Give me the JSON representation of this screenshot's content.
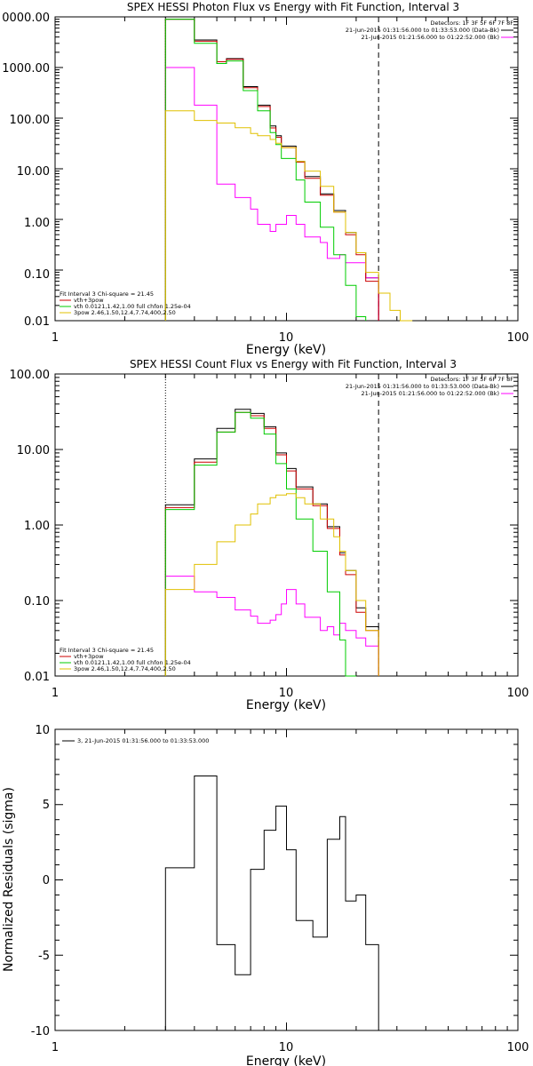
{
  "chart_data": [
    {
      "type": "line",
      "title": "SPEX HESSI Photon Flux vs Energy with Fit Function, Interval 3",
      "xlabel": "Energy (keV)",
      "ylabel": "",
      "xscale": "log",
      "yscale": "log",
      "xlim": [
        1,
        100
      ],
      "ylim": [
        0.01,
        10000
      ],
      "x_ticks": [
        "1",
        "10",
        "100"
      ],
      "y_ticks": [
        "0.01",
        "0.10",
        "1.00",
        "10.00",
        "100.00",
        "1000.00",
        "0000.00"
      ],
      "legend_top": {
        "detectors": "Detectors: 1F 3F 5F 6F 7F 8F",
        "line1": "21-Jun-2015 01:31:56.000 to 01:33:53.000 (Data-Bk)",
        "line2": "21-Jun-2015 01:21:56.000 to 01:22:52.000 (Bk)"
      },
      "legend_bottom": {
        "header": "Fit Interval 3   Chi-square = 21.45",
        "items": [
          "vth+3pow",
          "vth 0.0121,1.42,1.00  full chfon 1.25e-04",
          "3pow 2.46,1.50,12.4,7.74,400,2.50"
        ]
      },
      "vlines": [
        {
          "x": 3.0,
          "style": "dotted"
        },
        {
          "x": 25.0,
          "style": "dashed"
        }
      ],
      "edges": [
        3.0,
        3.5,
        4.0,
        4.5,
        5.0,
        5.5,
        6.0,
        6.5,
        7.0,
        7.5,
        8.0,
        8.5,
        9.0,
        9.5,
        10.0,
        11.0,
        12.0,
        13.0,
        14.0,
        15.0,
        16.0,
        17.0,
        18.0,
        20.0,
        22.0,
        25.0,
        28.0,
        31.0,
        35.0
      ],
      "series": [
        {
          "name": "Data-Bk",
          "color": "#000000",
          "values": [
            9000,
            9000,
            3500,
            3500,
            1200,
            1500,
            1500,
            420,
            420,
            180,
            180,
            70,
            45,
            28,
            28,
            14,
            7,
            7,
            3.2,
            3.2,
            1.5,
            1.5,
            0.55,
            0.22,
            0.07,
            null,
            null,
            null
          ]
        },
        {
          "name": "Bk",
          "color": "#ff00ff",
          "values": [
            1000,
            1000,
            180,
            180,
            5.0,
            5.0,
            2.7,
            2.7,
            1.6,
            0.8,
            0.8,
            0.58,
            0.8,
            0.8,
            1.2,
            0.8,
            0.45,
            0.45,
            0.35,
            0.17,
            0.17,
            0.2,
            0.14,
            0.14,
            0.07,
            null,
            null,
            null
          ]
        },
        {
          "name": "vth+3pow",
          "color": "#cc0000",
          "values": [
            9000,
            9000,
            3300,
            3300,
            1300,
            1450,
            1450,
            400,
            400,
            170,
            170,
            64,
            42,
            26,
            26,
            13.5,
            6.5,
            6.5,
            3.0,
            3.0,
            1.4,
            1.4,
            0.5,
            0.2,
            0.06,
            null,
            null,
            null
          ]
        },
        {
          "name": "vth",
          "color": "#00cc00",
          "values": [
            9000,
            9000,
            3000,
            3000,
            1200,
            1350,
            1350,
            350,
            350,
            140,
            140,
            52,
            30,
            16,
            16,
            6,
            2.2,
            2.2,
            0.7,
            0.7,
            0.2,
            0.2,
            0.05,
            0.012,
            null,
            null,
            null,
            null
          ]
        },
        {
          "name": "3pow",
          "color": "#e0c000",
          "values": [
            140,
            140,
            90,
            90,
            80,
            80,
            65,
            65,
            50,
            45,
            45,
            38,
            32,
            26,
            26,
            14,
            9,
            9,
            4.5,
            4.5,
            1.4,
            1.4,
            0.55,
            0.22,
            0.09,
            0.035,
            0.016,
            0.01
          ]
        }
      ]
    },
    {
      "type": "line",
      "title": "SPEX HESSI Count Flux vs Energy with Fit Function, Interval 3",
      "xlabel": "Energy (keV)",
      "ylabel": "",
      "xscale": "log",
      "yscale": "log",
      "xlim": [
        1,
        100
      ],
      "ylim": [
        0.01,
        100
      ],
      "x_ticks": [
        "1",
        "10",
        "100"
      ],
      "y_ticks": [
        "0.01",
        "0.10",
        "1.00",
        "10.00",
        "100.00"
      ],
      "legend_top": {
        "detectors": "Detectors: 1F 3F 5F 6F 7F 8F",
        "line1": "21-Jun-2015 01:31:56.000 to 01:33:53.000 (Data-Bk)",
        "line2": "21-Jun-2015 01:21:56.000 to 01:22:52.000 (Bk)"
      },
      "legend_bottom": {
        "header": "Fit Interval 3   Chi-square = 21.45",
        "items": [
          "vth+3pow",
          "vth 0.0121,1.42,1.00  full chfon 1.25e-04",
          "3pow 2.46,1.50,12.4,7.74,400,2.50"
        ]
      },
      "vlines": [
        {
          "x": 3.0,
          "style": "dotted"
        },
        {
          "x": 25.0,
          "style": "dashed"
        }
      ],
      "edges": [
        3.0,
        3.5,
        4.0,
        4.5,
        5.0,
        5.5,
        6.0,
        6.5,
        7.0,
        7.5,
        8.0,
        8.5,
        9.0,
        9.5,
        10.0,
        11.0,
        12.0,
        13.0,
        14.0,
        15.0,
        16.0,
        17.0,
        18.0,
        20.0,
        22.0,
        25.0
      ],
      "series": [
        {
          "name": "Data-Bk",
          "color": "#000000",
          "values": [
            1.85,
            1.85,
            7.5,
            7.5,
            19,
            19,
            34,
            34,
            30,
            30,
            20,
            20,
            9.0,
            9.0,
            5.6,
            3.2,
            3.2,
            1.9,
            1.9,
            0.95,
            0.95,
            0.43,
            0.25,
            0.08,
            0.045
          ]
        },
        {
          "name": "Bk",
          "color": "#ff00ff",
          "values": [
            0.21,
            0.21,
            0.13,
            0.13,
            0.11,
            0.11,
            0.075,
            0.075,
            0.062,
            0.05,
            0.05,
            0.055,
            0.065,
            0.09,
            0.14,
            0.09,
            0.06,
            0.06,
            0.04,
            0.045,
            0.035,
            0.05,
            0.04,
            0.032,
            0.025
          ]
        },
        {
          "name": "vth+3pow",
          "color": "#cc0000",
          "values": [
            1.7,
            1.7,
            6.8,
            6.8,
            17,
            17,
            31,
            31,
            28,
            28,
            19,
            19,
            8.5,
            8.5,
            5.2,
            3.0,
            3.0,
            1.8,
            1.8,
            0.9,
            0.9,
            0.4,
            0.22,
            0.07,
            0.04
          ]
        },
        {
          "name": "vth",
          "color": "#00cc00",
          "values": [
            1.6,
            1.6,
            6.2,
            6.2,
            17,
            17,
            31,
            31,
            26,
            26,
            16,
            16,
            6.5,
            6.5,
            3.0,
            1.2,
            1.2,
            0.45,
            0.45,
            0.13,
            0.13,
            0.03,
            0.007,
            null,
            null
          ]
        },
        {
          "name": "3pow",
          "color": "#e0c000",
          "values": [
            0.14,
            0.14,
            0.3,
            0.3,
            0.6,
            0.6,
            1.0,
            1.0,
            1.4,
            1.9,
            1.9,
            2.3,
            2.5,
            2.5,
            2.6,
            2.3,
            1.9,
            1.9,
            1.2,
            1.2,
            0.7,
            0.45,
            0.25,
            0.1,
            0.04
          ]
        }
      ]
    },
    {
      "type": "line",
      "title": "",
      "xlabel": "Energy (keV)",
      "ylabel": "Normalized Residuals (sigma)",
      "xscale": "log",
      "yscale": "linear",
      "xlim": [
        1,
        100
      ],
      "ylim": [
        -10,
        10
      ],
      "x_ticks": [
        "1",
        "10",
        "100"
      ],
      "y_ticks": [
        "-10",
        "-5",
        "0",
        "5",
        "10"
      ],
      "legend": "3, 21-Jun-2015 01:31:56.000 to 01:33:53.000",
      "edges": [
        3.0,
        3.5,
        4.0,
        4.5,
        5.0,
        5.5,
        6.0,
        6.5,
        7.0,
        7.5,
        8.0,
        8.5,
        9.0,
        9.5,
        10.0,
        11.0,
        12.0,
        13.0,
        14.0,
        15.0,
        16.0,
        17.0,
        18.0,
        20.0,
        22.0,
        25.0
      ],
      "series": [
        {
          "name": "",
          "color": "#000000",
          "values": [
            0.8,
            0.8,
            6.9,
            6.9,
            -4.3,
            -4.3,
            -6.3,
            -6.3,
            0.7,
            0.7,
            3.3,
            3.3,
            4.9,
            4.9,
            2.0,
            -2.7,
            -2.7,
            -3.8,
            -3.8,
            2.7,
            2.7,
            4.2,
            -1.4,
            -1.0,
            -4.3
          ]
        }
      ]
    }
  ]
}
